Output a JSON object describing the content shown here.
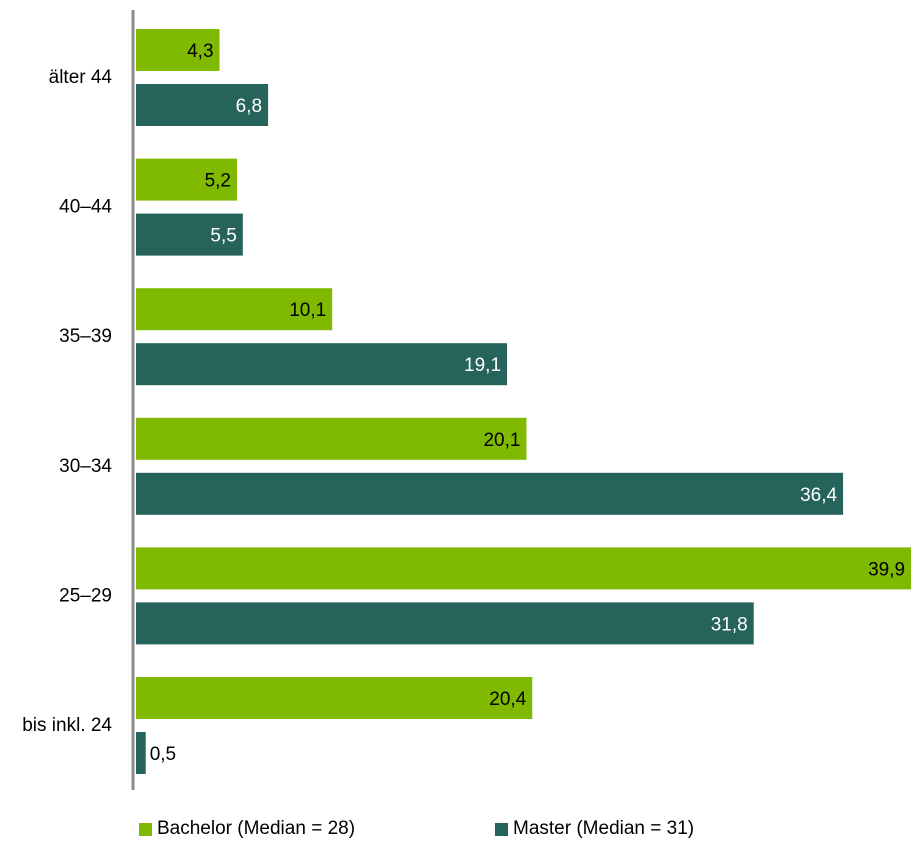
{
  "chart_data": {
    "type": "bar",
    "orientation": "horizontal",
    "categories": [
      "älter 44",
      "40–44",
      "35–39",
      "30–34",
      "25–29",
      "bis inkl. 24"
    ],
    "series": [
      {
        "name": "Bachelor (Median = 28)",
        "color": "#7fba00",
        "values": [
          4.3,
          5.2,
          10.1,
          20.1,
          39.9,
          20.4
        ],
        "labels": [
          "4,3",
          "5,2",
          "10,1",
          "20,1",
          "39,9",
          "20,4"
        ]
      },
      {
        "name": "Master (Median = 31)",
        "color": "#26635a",
        "values": [
          6.8,
          5.5,
          19.1,
          36.4,
          31.8,
          0.5
        ],
        "labels": [
          "6,8",
          "5,5",
          "19,1",
          "36,4",
          "31,8",
          "0,5"
        ]
      }
    ],
    "xlim": [
      0,
      40
    ],
    "grid": false,
    "legend_position": "bottom"
  },
  "legend": {
    "bachelor": "Bachelor (Median = 28)",
    "master": "Master (Median = 31)"
  }
}
